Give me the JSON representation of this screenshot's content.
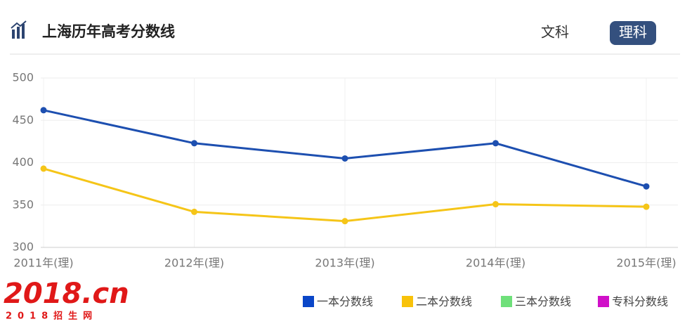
{
  "header": {
    "title": "上海历年高考分数线",
    "tabs": [
      "文科",
      "理科"
    ]
  },
  "chart_data": {
    "type": "line",
    "categories": [
      "2011年(理)",
      "2012年(理)",
      "2013年(理)",
      "2014年(理)",
      "2015年(理)"
    ],
    "series": [
      {
        "name": "一本分数线",
        "color": "#1d4fb0",
        "legend_color": "#0a46c8",
        "values": [
          462,
          423,
          405,
          423,
          372
        ]
      },
      {
        "name": "二本分数线",
        "color": "#f5c518",
        "legend_color": "#f8c20a",
        "values": [
          393,
          342,
          331,
          351,
          348
        ]
      },
      {
        "name": "三本分数线",
        "color": "#6fe07a",
        "legend_color": "#6fe07a",
        "values": [
          null,
          null,
          null,
          null,
          null
        ]
      },
      {
        "name": "专科分数线",
        "color": "#d010c8",
        "legend_color": "#d010c8",
        "values": [
          null,
          null,
          null,
          null,
          null
        ]
      }
    ],
    "ylim": [
      300,
      500
    ],
    "yticks": [
      300,
      350,
      400,
      450,
      500
    ],
    "grid": true
  },
  "logo": {
    "main": "2018.cn",
    "sub": "2018招生网"
  }
}
